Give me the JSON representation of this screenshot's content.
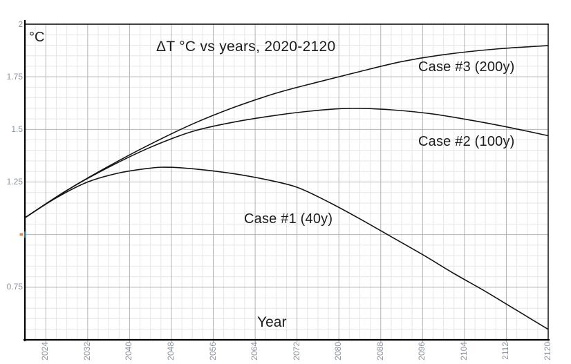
{
  "title": "ΔT °C vs years, 2020-2120",
  "axes": {
    "y_unit": "°C",
    "x_label": "Year",
    "y_tick_labels": [
      "2",
      "1.75",
      "1.5",
      "1.25",
      "0.75"
    ],
    "x_tick_labels": [
      "2024",
      "2032",
      "2040",
      "2048",
      "2056",
      "2064",
      "2072",
      "2080",
      "2088",
      "2096",
      "2104",
      "2112",
      "2120"
    ]
  },
  "annotations": {
    "case1": "Case #1 (40y)",
    "case2": "Case #2 (100y)",
    "case3": "Case #3 (200y)"
  },
  "colors": {
    "curve": "#141414",
    "axis": "#000000",
    "major_grid": "#b3b3b3",
    "minor_grid": "#e6e6e6",
    "tick_text": "#8b929c",
    "y1_tick_marker": "#4a7ddc",
    "y1_dot_marker": "#cd8a46"
  },
  "chart_data": {
    "type": "line",
    "title": "ΔT °C vs years, 2020-2120",
    "xlabel": "Year",
    "ylabel": "°C",
    "xlim": [
      2020,
      2120
    ],
    "ylim": [
      0.5,
      2.0
    ],
    "x_major_step": 8,
    "x_major_anchor": 2024,
    "x_minor_step": 2,
    "y_major_step": 0.25,
    "y_minor_step": 0.05,
    "grid": true,
    "legend_position": "inline-labels",
    "series": [
      {
        "name": "Case #1 (40y)",
        "points": [
          [
            2020,
            1.08
          ],
          [
            2026,
            1.175
          ],
          [
            2032,
            1.25
          ],
          [
            2038,
            1.293
          ],
          [
            2044,
            1.316
          ],
          [
            2048,
            1.32
          ],
          [
            2054,
            1.308
          ],
          [
            2060,
            1.289
          ],
          [
            2066,
            1.262
          ],
          [
            2072,
            1.225
          ],
          [
            2078,
            1.155
          ],
          [
            2084,
            1.075
          ],
          [
            2090,
            0.99
          ],
          [
            2096,
            0.905
          ],
          [
            2102,
            0.815
          ],
          [
            2108,
            0.73
          ],
          [
            2114,
            0.64
          ],
          [
            2120,
            0.55
          ]
        ]
      },
      {
        "name": "Case #2 (100y)",
        "points": [
          [
            2020,
            1.08
          ],
          [
            2028,
            1.21
          ],
          [
            2036,
            1.32
          ],
          [
            2044,
            1.415
          ],
          [
            2052,
            1.49
          ],
          [
            2060,
            1.535
          ],
          [
            2068,
            1.567
          ],
          [
            2075,
            1.588
          ],
          [
            2082,
            1.6
          ],
          [
            2090,
            1.593
          ],
          [
            2098,
            1.573
          ],
          [
            2106,
            1.54
          ],
          [
            2113,
            1.507
          ],
          [
            2120,
            1.47
          ]
        ]
      },
      {
        "name": "Case #3 (200y)",
        "points": [
          [
            2020,
            1.08
          ],
          [
            2028,
            1.21
          ],
          [
            2036,
            1.325
          ],
          [
            2044,
            1.43
          ],
          [
            2052,
            1.525
          ],
          [
            2060,
            1.605
          ],
          [
            2068,
            1.672
          ],
          [
            2076,
            1.725
          ],
          [
            2084,
            1.775
          ],
          [
            2092,
            1.822
          ],
          [
            2100,
            1.855
          ],
          [
            2110,
            1.882
          ],
          [
            2120,
            1.898
          ]
        ]
      }
    ]
  }
}
